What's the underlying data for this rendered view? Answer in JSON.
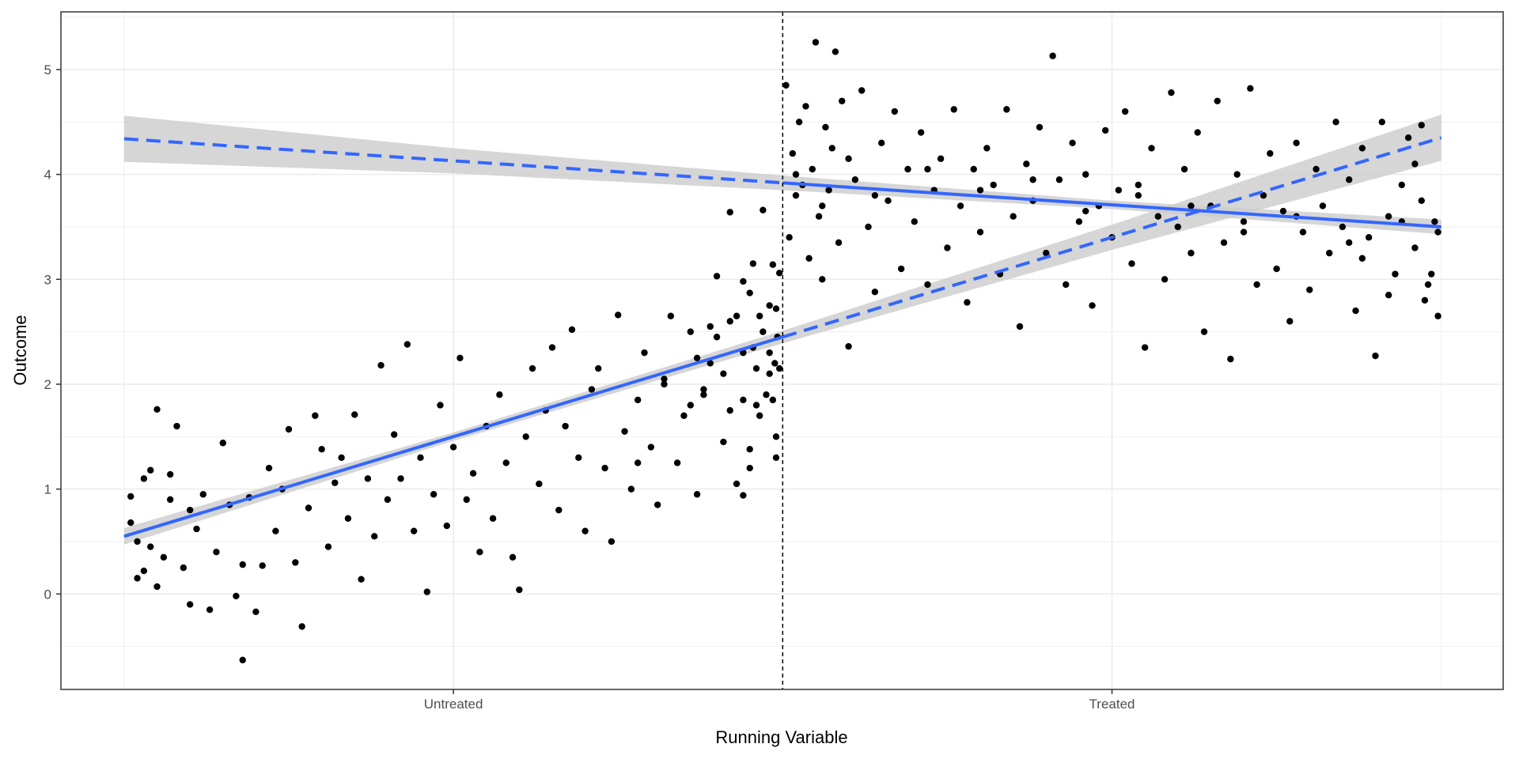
{
  "chart_data": {
    "type": "scatter",
    "title": "",
    "xlabel": "Running Variable",
    "ylabel": "Outcome",
    "xlim": [
      -1.096,
      1.094
    ],
    "ylim": [
      -0.91,
      5.55
    ],
    "x_ticks": [
      {
        "value": -0.5,
        "label": "Untreated"
      },
      {
        "value": 0.5,
        "label": "Treated"
      }
    ],
    "y_ticks": [
      0,
      1,
      2,
      3,
      4,
      5
    ],
    "grid": true,
    "cutoff": 0,
    "colors": {
      "points": "#000000",
      "fit": "#3366FF",
      "ribbon": "#CCCCCC",
      "cutoff": "#000000"
    },
    "fits": [
      {
        "side": "left",
        "intercept": 2.45,
        "slope": 1.9,
        "solid_range": [
          -1,
          0
        ],
        "dashed_range": [
          0,
          1
        ],
        "ci_x": [
          -1,
          -0.5,
          0,
          0.5,
          1
        ],
        "ci_halfwidth": [
          0.08,
          0.04,
          0.06,
          0.12,
          0.22
        ]
      },
      {
        "side": "right",
        "intercept": 3.92,
        "slope": -0.42,
        "solid_range": [
          0,
          1
        ],
        "dashed_range": [
          -1,
          0
        ],
        "ci_x": [
          -1,
          -0.5,
          0,
          0.5,
          1
        ],
        "ci_halfwidth": [
          0.22,
          0.12,
          0.07,
          0.04,
          0.07
        ]
      }
    ],
    "points": [
      [
        -0.99,
        0.68
      ],
      [
        -0.99,
        0.93
      ],
      [
        -0.98,
        0.15
      ],
      [
        -0.98,
        0.5
      ],
      [
        -0.97,
        1.1
      ],
      [
        -0.97,
        0.22
      ],
      [
        -0.96,
        0.45
      ],
      [
        -0.96,
        1.18
      ],
      [
        -0.95,
        1.76
      ],
      [
        -0.95,
        0.07
      ],
      [
        -0.94,
        0.35
      ],
      [
        -0.93,
        0.9
      ],
      [
        -0.93,
        1.14
      ],
      [
        -0.92,
        1.6
      ],
      [
        -0.91,
        0.25
      ],
      [
        -0.9,
        -0.1
      ],
      [
        -0.9,
        0.8
      ],
      [
        -0.89,
        0.62
      ],
      [
        -0.88,
        0.95
      ],
      [
        -0.87,
        -0.15
      ],
      [
        -0.86,
        0.4
      ],
      [
        -0.85,
        1.44
      ],
      [
        -0.84,
        0.85
      ],
      [
        -0.83,
        -0.02
      ],
      [
        -0.82,
        -0.63
      ],
      [
        -0.82,
        0.28
      ],
      [
        -0.81,
        0.92
      ],
      [
        -0.8,
        -0.17
      ],
      [
        -0.79,
        0.27
      ],
      [
        -0.78,
        1.2
      ],
      [
        -0.77,
        0.6
      ],
      [
        -0.76,
        1.0
      ],
      [
        -0.75,
        1.57
      ],
      [
        -0.74,
        0.3
      ],
      [
        -0.73,
        -0.31
      ],
      [
        -0.72,
        0.82
      ],
      [
        -0.71,
        1.7
      ],
      [
        -0.7,
        1.38
      ],
      [
        -0.69,
        0.45
      ],
      [
        -0.68,
        1.06
      ],
      [
        -0.67,
        1.3
      ],
      [
        -0.66,
        0.72
      ],
      [
        -0.65,
        1.71
      ],
      [
        -0.64,
        0.14
      ],
      [
        -0.63,
        1.1
      ],
      [
        -0.62,
        0.55
      ],
      [
        -0.61,
        2.18
      ],
      [
        -0.6,
        0.9
      ],
      [
        -0.59,
        1.52
      ],
      [
        -0.58,
        1.1
      ],
      [
        -0.57,
        2.38
      ],
      [
        -0.56,
        0.6
      ],
      [
        -0.55,
        1.3
      ],
      [
        -0.54,
        0.02
      ],
      [
        -0.53,
        0.95
      ],
      [
        -0.52,
        1.8
      ],
      [
        -0.51,
        0.65
      ],
      [
        -0.5,
        1.4
      ],
      [
        -0.49,
        2.25
      ],
      [
        -0.48,
        0.9
      ],
      [
        -0.47,
        1.15
      ],
      [
        -0.46,
        0.4
      ],
      [
        -0.45,
        1.6
      ],
      [
        -0.44,
        0.72
      ],
      [
        -0.43,
        1.9
      ],
      [
        -0.42,
        1.25
      ],
      [
        -0.41,
        0.35
      ],
      [
        -0.4,
        0.04
      ],
      [
        -0.39,
        1.5
      ],
      [
        -0.38,
        2.15
      ],
      [
        -0.37,
        1.05
      ],
      [
        -0.36,
        1.75
      ],
      [
        -0.35,
        2.35
      ],
      [
        -0.34,
        0.8
      ],
      [
        -0.33,
        1.6
      ],
      [
        -0.32,
        2.52
      ],
      [
        -0.31,
        1.3
      ],
      [
        -0.3,
        0.6
      ],
      [
        -0.29,
        1.95
      ],
      [
        -0.28,
        2.15
      ],
      [
        -0.27,
        1.2
      ],
      [
        -0.26,
        0.5
      ],
      [
        -0.25,
        2.66
      ],
      [
        -0.24,
        1.55
      ],
      [
        -0.23,
        1.0
      ],
      [
        -0.22,
        1.85
      ],
      [
        -0.21,
        2.3
      ],
      [
        -0.2,
        1.4
      ],
      [
        -0.19,
        0.85
      ],
      [
        -0.18,
        2.05
      ],
      [
        -0.17,
        2.65
      ],
      [
        -0.16,
        1.25
      ],
      [
        -0.15,
        1.7
      ],
      [
        -0.14,
        2.5
      ],
      [
        -0.13,
        0.95
      ],
      [
        -0.12,
        1.9
      ],
      [
        -0.11,
        2.2
      ],
      [
        -0.1,
        3.03
      ],
      [
        -0.09,
        1.45
      ],
      [
        -0.08,
        2.6
      ],
      [
        -0.07,
        1.05
      ],
      [
        -0.06,
        2.3
      ],
      [
        -0.05,
        2.87
      ],
      [
        -0.04,
        1.8
      ],
      [
        -0.03,
        3.66
      ],
      [
        -0.02,
        2.1
      ],
      [
        -0.01,
        1.5
      ],
      [
        -0.12,
        1.95
      ],
      [
        -0.1,
        2.45
      ],
      [
        -0.08,
        1.75
      ],
      [
        -0.06,
        2.98
      ],
      [
        -0.04,
        2.15
      ],
      [
        -0.035,
        1.7
      ],
      [
        -0.03,
        2.5
      ],
      [
        -0.025,
        1.9
      ],
      [
        -0.02,
        2.75
      ],
      [
        -0.015,
        3.14
      ],
      [
        -0.012,
        2.2
      ],
      [
        -0.01,
        1.3
      ],
      [
        -0.008,
        2.45
      ],
      [
        -0.22,
        1.25
      ],
      [
        -0.18,
        2.0
      ],
      [
        -0.14,
        1.8
      ],
      [
        -0.11,
        2.55
      ],
      [
        -0.07,
        2.65
      ],
      [
        -0.05,
        1.2
      ],
      [
        -0.045,
        2.35
      ],
      [
        -0.06,
        1.85
      ],
      [
        -0.09,
        2.1
      ],
      [
        -0.13,
        2.25
      ],
      [
        -0.08,
        3.64
      ],
      [
        -0.06,
        0.94
      ],
      [
        -0.05,
        1.38
      ],
      [
        -0.045,
        3.15
      ],
      [
        -0.035,
        2.65
      ],
      [
        -0.02,
        2.3
      ],
      [
        -0.01,
        2.72
      ],
      [
        -0.005,
        3.06
      ],
      [
        -0.005,
        2.15
      ],
      [
        -0.015,
        1.85
      ],
      [
        0.005,
        4.85
      ],
      [
        0.01,
        3.4
      ],
      [
        0.015,
        4.2
      ],
      [
        0.02,
        3.8
      ],
      [
        0.025,
        4.5
      ],
      [
        0.03,
        3.9
      ],
      [
        0.035,
        4.65
      ],
      [
        0.04,
        3.2
      ],
      [
        0.045,
        4.05
      ],
      [
        0.05,
        5.26
      ],
      [
        0.055,
        3.6
      ],
      [
        0.06,
        3.0
      ],
      [
        0.065,
        4.45
      ],
      [
        0.07,
        3.85
      ],
      [
        0.075,
        4.25
      ],
      [
        0.08,
        5.17
      ],
      [
        0.085,
        3.35
      ],
      [
        0.09,
        4.7
      ],
      [
        0.1,
        2.36
      ],
      [
        0.11,
        3.95
      ],
      [
        0.12,
        4.8
      ],
      [
        0.13,
        3.5
      ],
      [
        0.14,
        2.88
      ],
      [
        0.15,
        4.3
      ],
      [
        0.16,
        3.75
      ],
      [
        0.17,
        4.6
      ],
      [
        0.18,
        3.1
      ],
      [
        0.19,
        4.05
      ],
      [
        0.2,
        3.55
      ],
      [
        0.21,
        4.4
      ],
      [
        0.22,
        2.95
      ],
      [
        0.23,
        3.85
      ],
      [
        0.24,
        4.15
      ],
      [
        0.25,
        3.3
      ],
      [
        0.26,
        4.62
      ],
      [
        0.27,
        3.7
      ],
      [
        0.28,
        2.78
      ],
      [
        0.29,
        4.05
      ],
      [
        0.3,
        3.45
      ],
      [
        0.31,
        4.25
      ],
      [
        0.32,
        3.9
      ],
      [
        0.33,
        3.05
      ],
      [
        0.34,
        4.62
      ],
      [
        0.35,
        3.6
      ],
      [
        0.36,
        2.55
      ],
      [
        0.37,
        4.1
      ],
      [
        0.38,
        3.75
      ],
      [
        0.39,
        4.45
      ],
      [
        0.4,
        3.25
      ],
      [
        0.41,
        5.13
      ],
      [
        0.42,
        3.95
      ],
      [
        0.43,
        2.95
      ],
      [
        0.44,
        4.3
      ],
      [
        0.45,
        3.55
      ],
      [
        0.46,
        4.0
      ],
      [
        0.47,
        2.75
      ],
      [
        0.48,
        3.7
      ],
      [
        0.49,
        4.42
      ],
      [
        0.5,
        3.4
      ],
      [
        0.51,
        3.85
      ],
      [
        0.52,
        4.6
      ],
      [
        0.53,
        3.15
      ],
      [
        0.54,
        3.9
      ],
      [
        0.55,
        2.35
      ],
      [
        0.56,
        4.25
      ],
      [
        0.57,
        3.6
      ],
      [
        0.58,
        3.0
      ],
      [
        0.59,
        4.78
      ],
      [
        0.6,
        3.5
      ],
      [
        0.61,
        4.05
      ],
      [
        0.62,
        3.25
      ],
      [
        0.63,
        4.4
      ],
      [
        0.64,
        2.5
      ],
      [
        0.65,
        3.7
      ],
      [
        0.66,
        4.7
      ],
      [
        0.67,
        3.35
      ],
      [
        0.68,
        2.24
      ],
      [
        0.69,
        4.0
      ],
      [
        0.7,
        3.55
      ],
      [
        0.71,
        4.82
      ],
      [
        0.72,
        2.95
      ],
      [
        0.73,
        3.8
      ],
      [
        0.74,
        4.2
      ],
      [
        0.75,
        3.1
      ],
      [
        0.76,
        3.65
      ],
      [
        0.77,
        2.6
      ],
      [
        0.78,
        4.3
      ],
      [
        0.79,
        3.45
      ],
      [
        0.8,
        2.9
      ],
      [
        0.81,
        4.05
      ],
      [
        0.82,
        3.7
      ],
      [
        0.83,
        3.25
      ],
      [
        0.84,
        4.5
      ],
      [
        0.85,
        3.5
      ],
      [
        0.86,
        3.95
      ],
      [
        0.87,
        2.7
      ],
      [
        0.88,
        4.25
      ],
      [
        0.89,
        3.4
      ],
      [
        0.9,
        2.27
      ],
      [
        0.91,
        4.5
      ],
      [
        0.92,
        3.6
      ],
      [
        0.93,
        3.05
      ],
      [
        0.94,
        3.9
      ],
      [
        0.95,
        4.35
      ],
      [
        0.96,
        3.3
      ],
      [
        0.97,
        3.75
      ],
      [
        0.98,
        2.95
      ],
      [
        0.99,
        3.55
      ],
      [
        0.995,
        2.65
      ],
      [
        0.995,
        3.45
      ],
      [
        0.02,
        4.0
      ],
      [
        0.06,
        3.7
      ],
      [
        0.1,
        4.15
      ],
      [
        0.14,
        3.8
      ],
      [
        0.22,
        4.05
      ],
      [
        0.3,
        3.85
      ],
      [
        0.38,
        3.95
      ],
      [
        0.46,
        3.65
      ],
      [
        0.54,
        3.8
      ],
      [
        0.62,
        3.7
      ],
      [
        0.7,
        3.45
      ],
      [
        0.78,
        3.6
      ],
      [
        0.86,
        3.35
      ],
      [
        0.94,
        3.55
      ],
      [
        0.97,
        4.47
      ],
      [
        0.985,
        3.05
      ],
      [
        0.975,
        2.8
      ],
      [
        0.96,
        4.1
      ],
      [
        0.92,
        2.85
      ],
      [
        0.88,
        3.2
      ]
    ]
  }
}
